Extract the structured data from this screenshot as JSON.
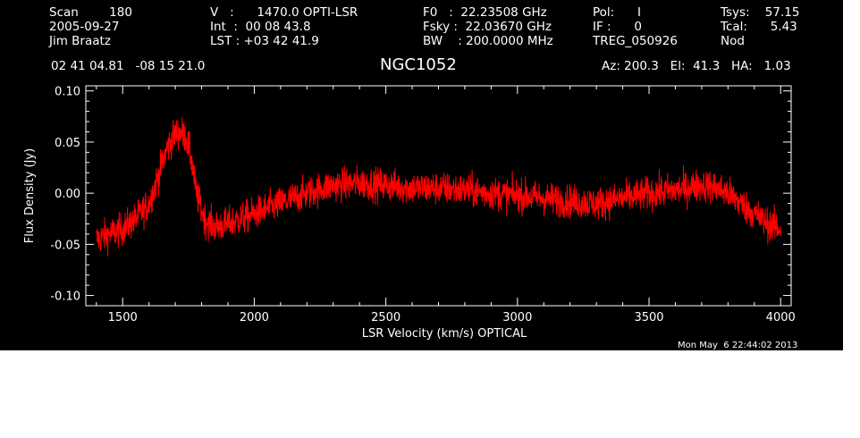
{
  "header": {
    "col1": [
      "Scan        180",
      "2005-09-27",
      "Jim Braatz"
    ],
    "col2": [
      "V   :      1470.0 OPTI-LSR",
      "Int  :  00 08 43.8",
      "LST : +03 42 41.9"
    ],
    "col3": [
      "F0   :  22.23508 GHz",
      "Fsky :  22.03670 GHz",
      "BW    : 200.0000 MHz"
    ],
    "col4": [
      "Pol:      I",
      "IF :      0",
      "TREG_050926"
    ],
    "col5": [
      "Tsys:    57.15",
      "Tcal:      5.43",
      "Nod"
    ],
    "coords": "02 41 04.81   -08 15 21.0",
    "source": "NGC1052",
    "pointing": "Az: 200.3   El:  41.3   HA:   1.03",
    "timestamp": "Mon May  6 22:44:02 2013"
  },
  "colors": {
    "background": "#000000",
    "axes": "#ffffff",
    "series": "#ff0000"
  },
  "chart_data": {
    "type": "line",
    "xlabel": "LSR Velocity (km/s) OPTICAL",
    "ylabel": "Flux Density (Jy)",
    "xlim": [
      1360,
      4040
    ],
    "ylim": [
      -0.11,
      0.105
    ],
    "x_ticks": [
      1500,
      2000,
      2500,
      3000,
      3500,
      4000
    ],
    "y_ticks": [
      -0.1,
      -0.05,
      0.0,
      0.05,
      0.1
    ],
    "x_tick_labels": [
      "1500",
      "2000",
      "2500",
      "3000",
      "3500",
      "4000"
    ],
    "y_tick_labels": [
      "-0.10",
      "-0.05",
      "0.00",
      "0.05",
      "0.10"
    ],
    "grid": false,
    "series": [
      {
        "color": "#ff0000",
        "noise_rms_jy": 0.008,
        "x": [
          1400,
          1450,
          1500,
          1550,
          1600,
          1640,
          1670,
          1700,
          1720,
          1740,
          1760,
          1780,
          1810,
          1850,
          1900,
          2000,
          2100,
          2200,
          2300,
          2400,
          2500,
          2600,
          2700,
          2800,
          2900,
          3000,
          3100,
          3200,
          3300,
          3400,
          3500,
          3600,
          3700,
          3750,
          3800,
          3850,
          3900,
          3950,
          4000
        ],
        "y": [
          -0.045,
          -0.04,
          -0.035,
          -0.025,
          -0.01,
          0.02,
          0.045,
          0.058,
          0.06,
          0.055,
          0.035,
          0.0,
          -0.025,
          -0.033,
          -0.03,
          -0.02,
          -0.01,
          0.0,
          0.008,
          0.01,
          0.008,
          0.005,
          0.005,
          0.003,
          0.0,
          -0.002,
          -0.005,
          -0.008,
          -0.01,
          -0.005,
          0.0,
          0.003,
          0.008,
          0.006,
          0.0,
          -0.01,
          -0.02,
          -0.03,
          -0.035
        ]
      }
    ]
  }
}
